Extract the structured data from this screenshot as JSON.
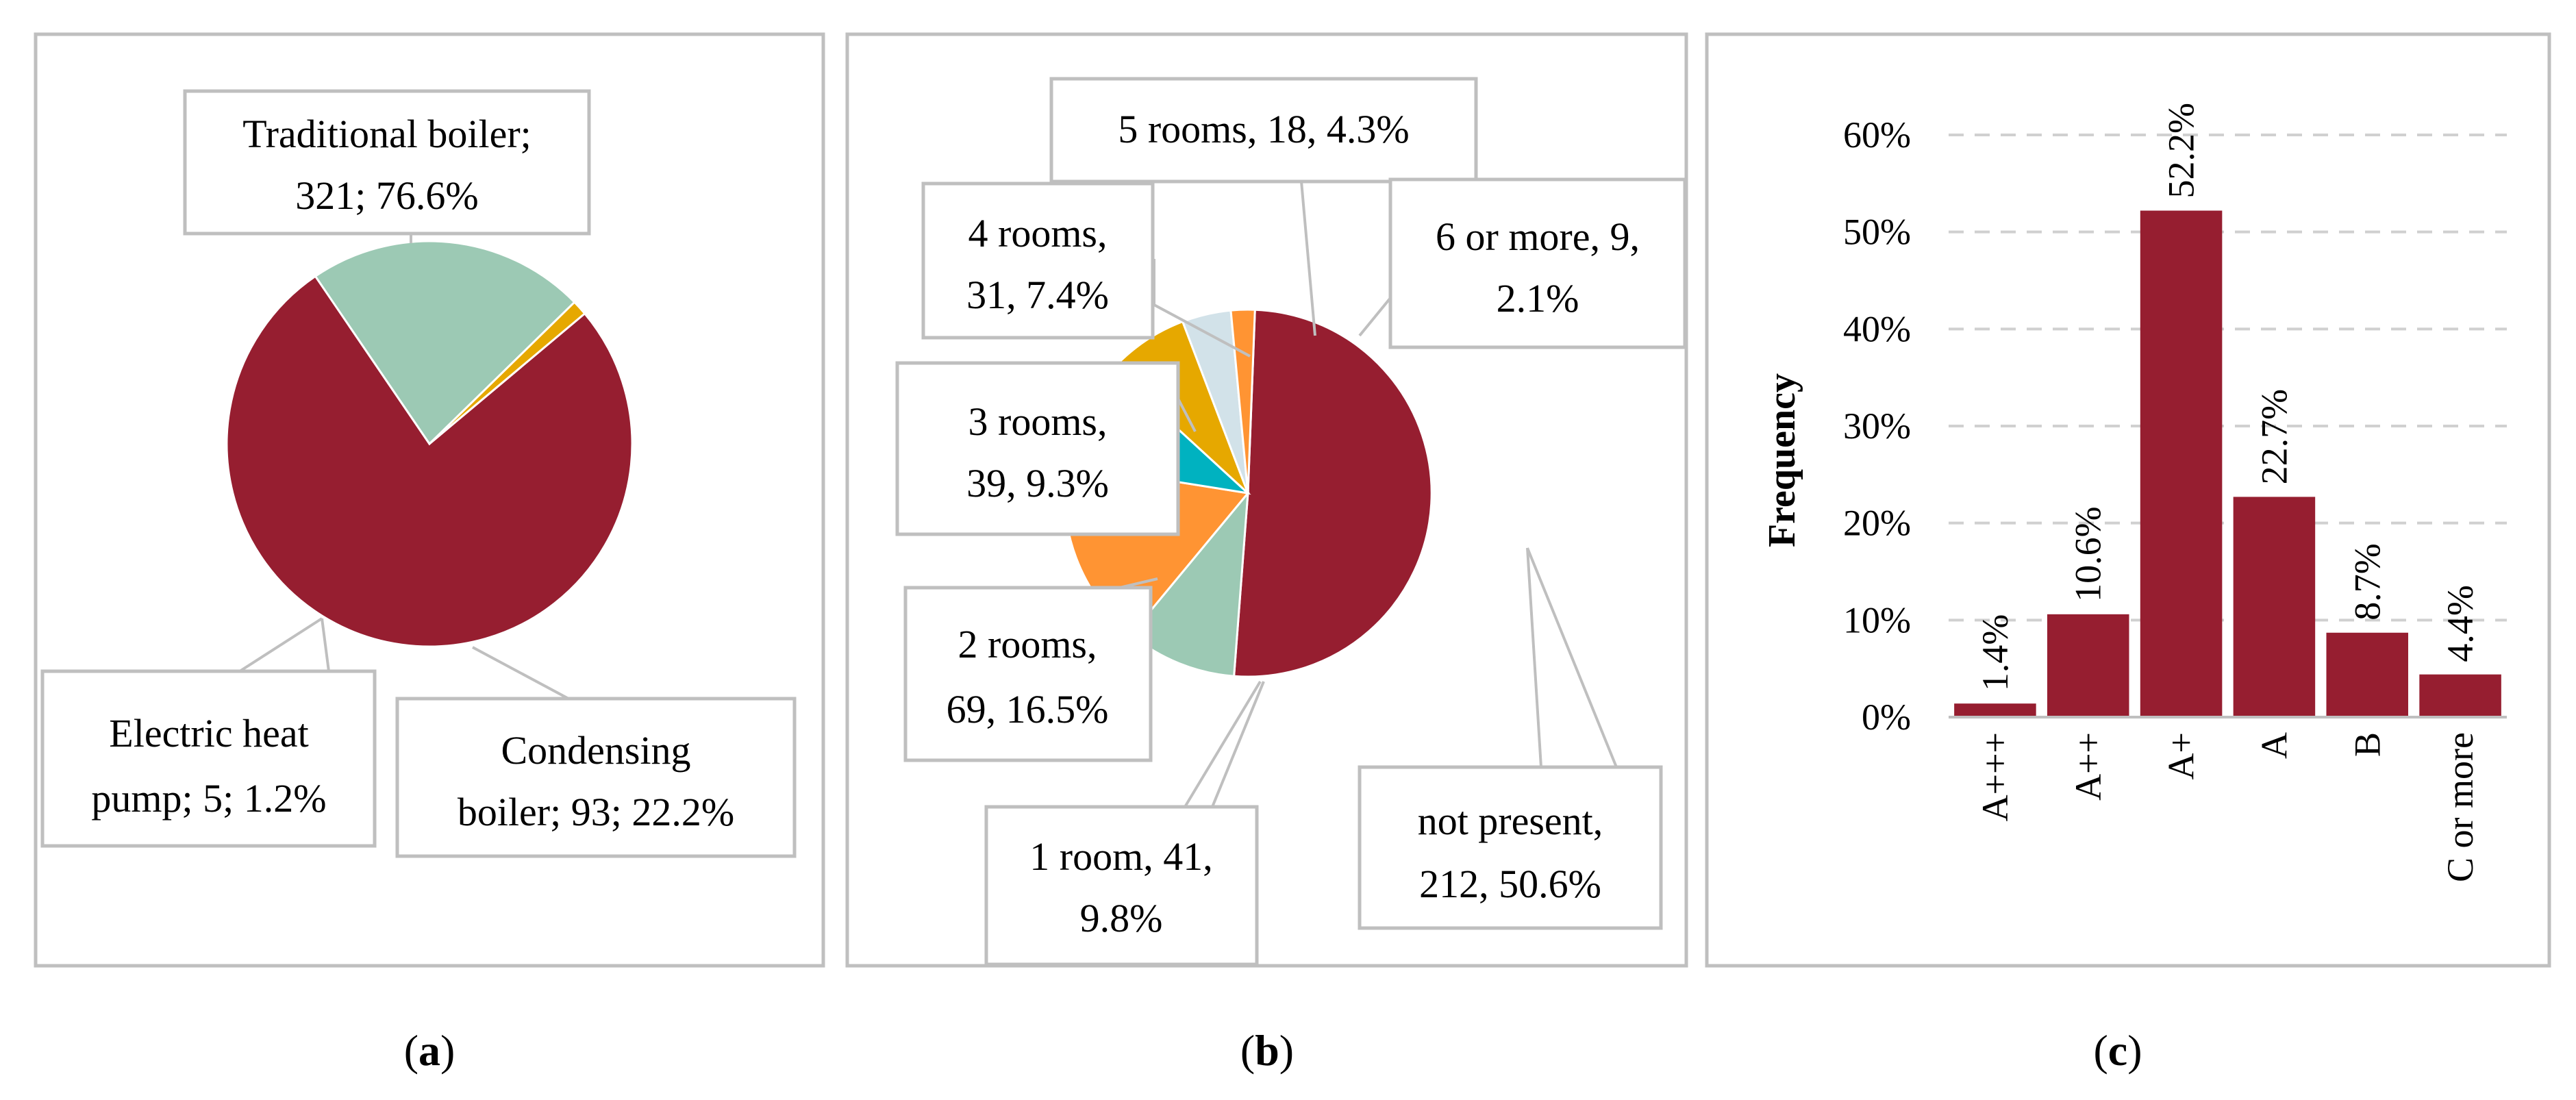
{
  "chart_data": [
    {
      "type": "pie",
      "panel": "(a)",
      "slices": [
        {
          "label_line1": "Traditional boiler;",
          "label_line2": "321; 76.6%",
          "count": 321,
          "percent": 76.6,
          "color": "#961e30"
        },
        {
          "label_line1": "Condensing",
          "label_line2": "boiler; 93; 22.2%",
          "count": 93,
          "percent": 22.2,
          "color": "#9cc9b4"
        },
        {
          "label_line1": "Electric heat",
          "label_line2": "pump; 5; 1.2%",
          "count": 5,
          "percent": 1.2,
          "color": "#e6a800"
        }
      ]
    },
    {
      "type": "pie",
      "panel": "(b)",
      "slices": [
        {
          "label_line1": "not present,",
          "label_line2": "212, 50.6%",
          "count": 212,
          "percent": 50.6,
          "color": "#961e30"
        },
        {
          "label_line1": "1 room, 41,",
          "label_line2": "9.8%",
          "count": 41,
          "percent": 9.8,
          "color": "#9cc9b4"
        },
        {
          "label_line1": "2 rooms,",
          "label_line2": "69, 16.5%",
          "count": 69,
          "percent": 16.5,
          "color": "#ff9433"
        },
        {
          "label_line1": "3 rooms,",
          "label_line2": "39, 9.3%",
          "count": 39,
          "percent": 9.3,
          "color": "#00b2c0"
        },
        {
          "label_line1": "4 rooms,",
          "label_line2": "31, 7.4%",
          "count": 31,
          "percent": 7.4,
          "color": "#e6a800"
        },
        {
          "label_line1": "5 rooms, 18, 4.3%",
          "label_line2": "",
          "count": 18,
          "percent": 4.3,
          "color": "#d2e2e9"
        },
        {
          "label_line1": "6 or more, 9,",
          "label_line2": "2.1%",
          "count": 9,
          "percent": 2.1,
          "color": "#ff9433"
        }
      ]
    },
    {
      "type": "bar",
      "panel": "(c)",
      "categories": [
        "A+++",
        "A++",
        "A+",
        "A",
        "B",
        "C or more"
      ],
      "values": [
        1.4,
        10.6,
        52.2,
        22.7,
        8.7,
        4.4
      ],
      "value_labels": [
        "1.4%",
        "10.6%",
        "52.2%",
        "22.7%",
        "8.7%",
        "4.4%"
      ],
      "ylabel": "Frequency",
      "ylim": [
        0,
        60
      ],
      "yticks": [
        0,
        10,
        20,
        30,
        40,
        50,
        60
      ],
      "ytick_labels": [
        "0%",
        "10%",
        "20%",
        "30%",
        "40%",
        "50%",
        "60%"
      ],
      "grid": true,
      "bar_color": "#961e30"
    }
  ],
  "captions": {
    "a": {
      "open": "(",
      "letter": "a",
      "close": ")"
    },
    "b": {
      "open": "(",
      "letter": "b",
      "close": ")"
    },
    "c": {
      "open": "(",
      "letter": "c",
      "close": ")"
    }
  }
}
